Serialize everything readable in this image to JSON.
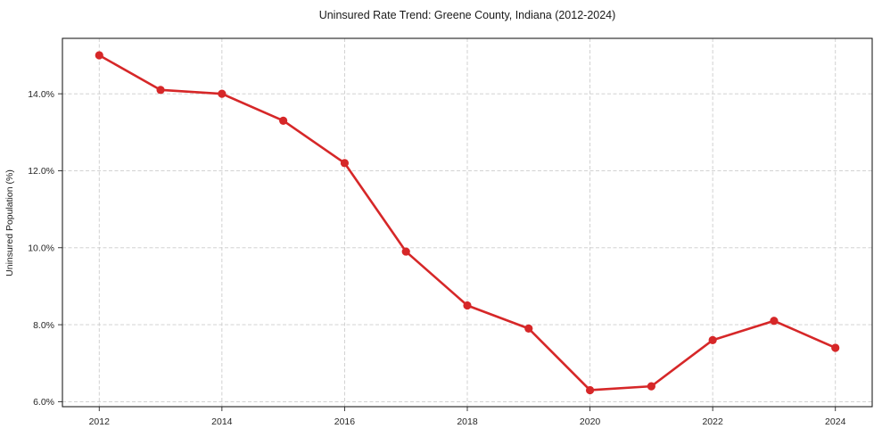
{
  "chart_data": {
    "type": "line",
    "title": "Uninsured Rate Trend: Greene County, Indiana (2012-2024)",
    "xlabel": "",
    "ylabel": "Uninsured Population (%)",
    "x": [
      2012,
      2013,
      2014,
      2015,
      2016,
      2017,
      2018,
      2019,
      2020,
      2021,
      2022,
      2023,
      2024
    ],
    "series": [
      {
        "name": "Uninsured Rate",
        "values": [
          15.0,
          14.1,
          14.0,
          13.3,
          12.2,
          9.9,
          8.5,
          7.9,
          6.3,
          6.4,
          7.6,
          8.1,
          7.4
        ],
        "color": "#d62728",
        "marker": "circle",
        "line_width": 2.6,
        "marker_radius": 4.6
      }
    ],
    "xlim": [
      2011.4,
      2024.6
    ],
    "ylim": [
      5.87,
      15.44
    ],
    "xticks": [
      2012,
      2014,
      2016,
      2018,
      2020,
      2022,
      2024
    ],
    "xtick_labels": [
      "2012",
      "2014",
      "2016",
      "2018",
      "2020",
      "2022",
      "2024"
    ],
    "yticks": [
      6,
      8,
      10,
      12,
      14
    ],
    "ytick_labels": [
      "6.0%",
      "8.0%",
      "10.0%",
      "12.0%",
      "14.0%"
    ],
    "grid": true,
    "grid_style": "dashed",
    "legend_position": "none",
    "colors": {
      "line": "#d62728",
      "grid": "#cccccc",
      "spine": "#202020",
      "text": "#1a1a1a",
      "background": "#ffffff"
    }
  }
}
